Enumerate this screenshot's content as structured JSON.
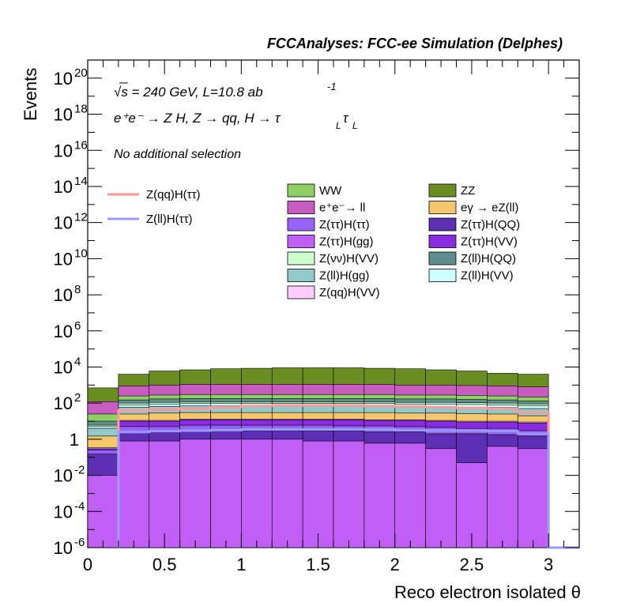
{
  "chart_data": {
    "type": "stacked_histogram",
    "title": "FCCAnalyses: FCC-ee Simulation (Delphes)",
    "annotations": {
      "energy": "√s = 240 GeV, L=10.8 ab",
      "lumi_exp": "-1",
      "process": "e⁺e⁻ → Z H, Z → qq, H → τ",
      "process_sub": "L",
      "process_tau2": "τ",
      "selection": "No additional selection"
    },
    "xlabel": "Reco electron isolated θ",
    "ylabel": "Events",
    "xlim": [
      0,
      3.2
    ],
    "ylog": true,
    "ylim": [
      1e-06,
      1e+21
    ],
    "x_ticks": [
      "0",
      "0.5",
      "1",
      "1.5",
      "2",
      "2.5",
      "3"
    ],
    "x_tick_values": [
      0,
      0.5,
      1,
      1.5,
      2,
      2.5,
      3
    ],
    "y_ticks": [
      {
        "base": "10",
        "exp": "20",
        "pow": 20
      },
      {
        "base": "10",
        "exp": "18",
        "pow": 18
      },
      {
        "base": "10",
        "exp": "16",
        "pow": 16
      },
      {
        "base": "10",
        "exp": "14",
        "pow": 14
      },
      {
        "base": "10",
        "exp": "12",
        "pow": 12
      },
      {
        "base": "10",
        "exp": "10",
        "pow": 10
      },
      {
        "base": "10",
        "exp": "8",
        "pow": 8
      },
      {
        "base": "10",
        "exp": "6",
        "pow": 6
      },
      {
        "base": "10",
        "exp": "4",
        "pow": 4
      },
      {
        "base": "10",
        "exp": "2",
        "pow": 2
      },
      {
        "base": "1",
        "exp": "",
        "pow": 0
      },
      {
        "base": "10",
        "exp": "-2",
        "pow": -2
      },
      {
        "base": "10",
        "exp": "-4",
        "pow": -4
      },
      {
        "base": "10",
        "exp": "-6",
        "pow": -6
      }
    ],
    "bin_edges": [
      0,
      0.2,
      0.4,
      0.6,
      0.8,
      1.0,
      1.2,
      1.4,
      1.6,
      1.8,
      2.0,
      2.2,
      2.4,
      2.6,
      2.8,
      3.0,
      3.2
    ],
    "stack_order_bottom_to_top": [
      "Z(ττ)H(gg)",
      "Z(ττ)H(QQ)",
      "Z(ττ)H(ττ)",
      "Z(ττ)H(VV)",
      "Z(qq)H(VV)",
      "eγ → eZ(ll)",
      "Z(ll)H(gg)",
      "Z(ll)H(VV)",
      "Z(νν)H(VV)",
      "Z(ll)H(QQ)",
      "WW",
      "e⁺e⁻→ ll",
      "ZZ"
    ],
    "stacked_series": [
      {
        "name": "Z(ττ)H(gg)",
        "color": "#c15ef5",
        "top": [
          0.01,
          0.8,
          0.8,
          1.0,
          1.0,
          1.0,
          1.0,
          0.8,
          0.8,
          0.6,
          0.6,
          0.3,
          0.05,
          0.4,
          0.3,
          0.0
        ]
      },
      {
        "name": "Z(ττ)H(QQ)",
        "color": "#5d2fb5",
        "top": [
          0.15,
          2.5,
          2.5,
          3.0,
          3.0,
          3.0,
          3.0,
          2.8,
          2.8,
          2.5,
          2.5,
          2.0,
          2.0,
          1.8,
          1.5,
          0.0
        ]
      },
      {
        "name": "Z(ττ)H(ττ)",
        "color": "#9663f7",
        "top": [
          0.25,
          5,
          5,
          6,
          6,
          6,
          6,
          6,
          5.5,
          5.5,
          5,
          4.5,
          4,
          4,
          3,
          0.0
        ]
      },
      {
        "name": "Z(ττ)H(VV)",
        "color": "#8a2be2",
        "top": [
          0.3,
          10,
          10,
          12,
          12,
          12,
          12,
          12,
          12,
          11,
          11,
          10,
          9,
          9,
          8,
          0.0
        ]
      },
      {
        "name": "Z(qq)H(VV)",
        "color": "#ffccff",
        "top": [
          0.35,
          11,
          11,
          13,
          13,
          13,
          13,
          13,
          13,
          12,
          12,
          11,
          10,
          10,
          9,
          0.0
        ]
      },
      {
        "name": "eγ → eZ(ll)",
        "color": "#f5c76d",
        "top": [
          1.5,
          25,
          28,
          30,
          30,
          30,
          30,
          30,
          30,
          30,
          28,
          28,
          26,
          25,
          20,
          0.0
        ]
      },
      {
        "name": "Z(ll)H(gg)",
        "color": "#94c9c9",
        "top": [
          4,
          60,
          65,
          70,
          70,
          70,
          70,
          70,
          70,
          70,
          65,
          65,
          60,
          58,
          50,
          0.0
        ]
      },
      {
        "name": "Z(ll)H(VV)",
        "color": "#ccffff",
        "top": [
          5,
          80,
          90,
          95,
          95,
          95,
          95,
          95,
          95,
          95,
          90,
          90,
          85,
          80,
          70,
          0.0
        ]
      },
      {
        "name": "Z(νν)H(VV)",
        "color": "#ccffcc",
        "top": [
          6,
          100,
          110,
          115,
          115,
          115,
          115,
          115,
          115,
          115,
          110,
          110,
          105,
          100,
          90,
          0.0
        ]
      },
      {
        "name": "Z(ll)H(QQ)",
        "color": "#5e8e8e",
        "top": [
          10,
          150,
          170,
          180,
          180,
          180,
          180,
          180,
          180,
          180,
          170,
          170,
          160,
          150,
          130,
          0.0
        ]
      },
      {
        "name": "WW",
        "color": "#8fcf63",
        "top": [
          25,
          250,
          280,
          300,
          300,
          300,
          300,
          300,
          300,
          300,
          280,
          280,
          270,
          250,
          220,
          0.0
        ]
      },
      {
        "name": "e⁺e⁻→ ll",
        "color": "#c85cc0",
        "top": [
          120,
          900,
          1000,
          1100,
          1100,
          1100,
          1100,
          1100,
          1100,
          1100,
          1000,
          1000,
          950,
          900,
          800,
          0.0
        ]
      },
      {
        "name": "ZZ",
        "color": "#6b8e23",
        "top": [
          700,
          4000,
          6000,
          7000,
          8000,
          8500,
          9000,
          9000,
          9000,
          8500,
          8000,
          7000,
          6000,
          4500,
          4000,
          0.0
        ]
      }
    ],
    "line_series": [
      {
        "name": "Z(qq)H(ττ)",
        "color": "#ff9999",
        "values": [
          null,
          40,
          45,
          50,
          60,
          70,
          75,
          75,
          75,
          70,
          65,
          60,
          55,
          50,
          30,
          0.0
        ]
      },
      {
        "name": "Z(ll)H(ττ)",
        "color": "#9999ff",
        "values": [
          null,
          2.5,
          2.8,
          3.0,
          3.2,
          3.5,
          3.5,
          3.5,
          3.5,
          3.5,
          3.2,
          3.0,
          3.0,
          2.8,
          2.0,
          0.0
        ]
      }
    ],
    "legend_left": [
      {
        "label": "Z(qq)H(ττ)",
        "color": "#ff9999"
      },
      {
        "label": "Z(ll)H(ττ)",
        "color": "#9999ff"
      }
    ],
    "legend_mid": [
      {
        "label": "WW",
        "color": "#8fcf63"
      },
      {
        "label": "e⁺e⁻→ ll",
        "color": "#c85cc0"
      },
      {
        "label": "Z(ττ)H(ττ)",
        "color": "#9663f7"
      },
      {
        "label": "Z(ττ)H(gg)",
        "color": "#c15ef5"
      },
      {
        "label": "Z(νν)H(VV)",
        "color": "#ccffcc"
      },
      {
        "label": "Z(ll)H(gg)",
        "color": "#94c9c9"
      },
      {
        "label": "Z(qq)H(VV)",
        "color": "#ffccff"
      }
    ],
    "legend_right": [
      {
        "label": "ZZ",
        "color": "#6b8e23"
      },
      {
        "label": "eγ → eZ(ll)",
        "color": "#f5c76d"
      },
      {
        "label": "Z(ττ)H(QQ)",
        "color": "#5d2fb5"
      },
      {
        "label": "Z(ττ)H(VV)",
        "color": "#8a2be2"
      },
      {
        "label": "Z(ll)H(QQ)",
        "color": "#5e8e8e"
      },
      {
        "label": "Z(ll)H(VV)",
        "color": "#ccffff"
      }
    ]
  }
}
